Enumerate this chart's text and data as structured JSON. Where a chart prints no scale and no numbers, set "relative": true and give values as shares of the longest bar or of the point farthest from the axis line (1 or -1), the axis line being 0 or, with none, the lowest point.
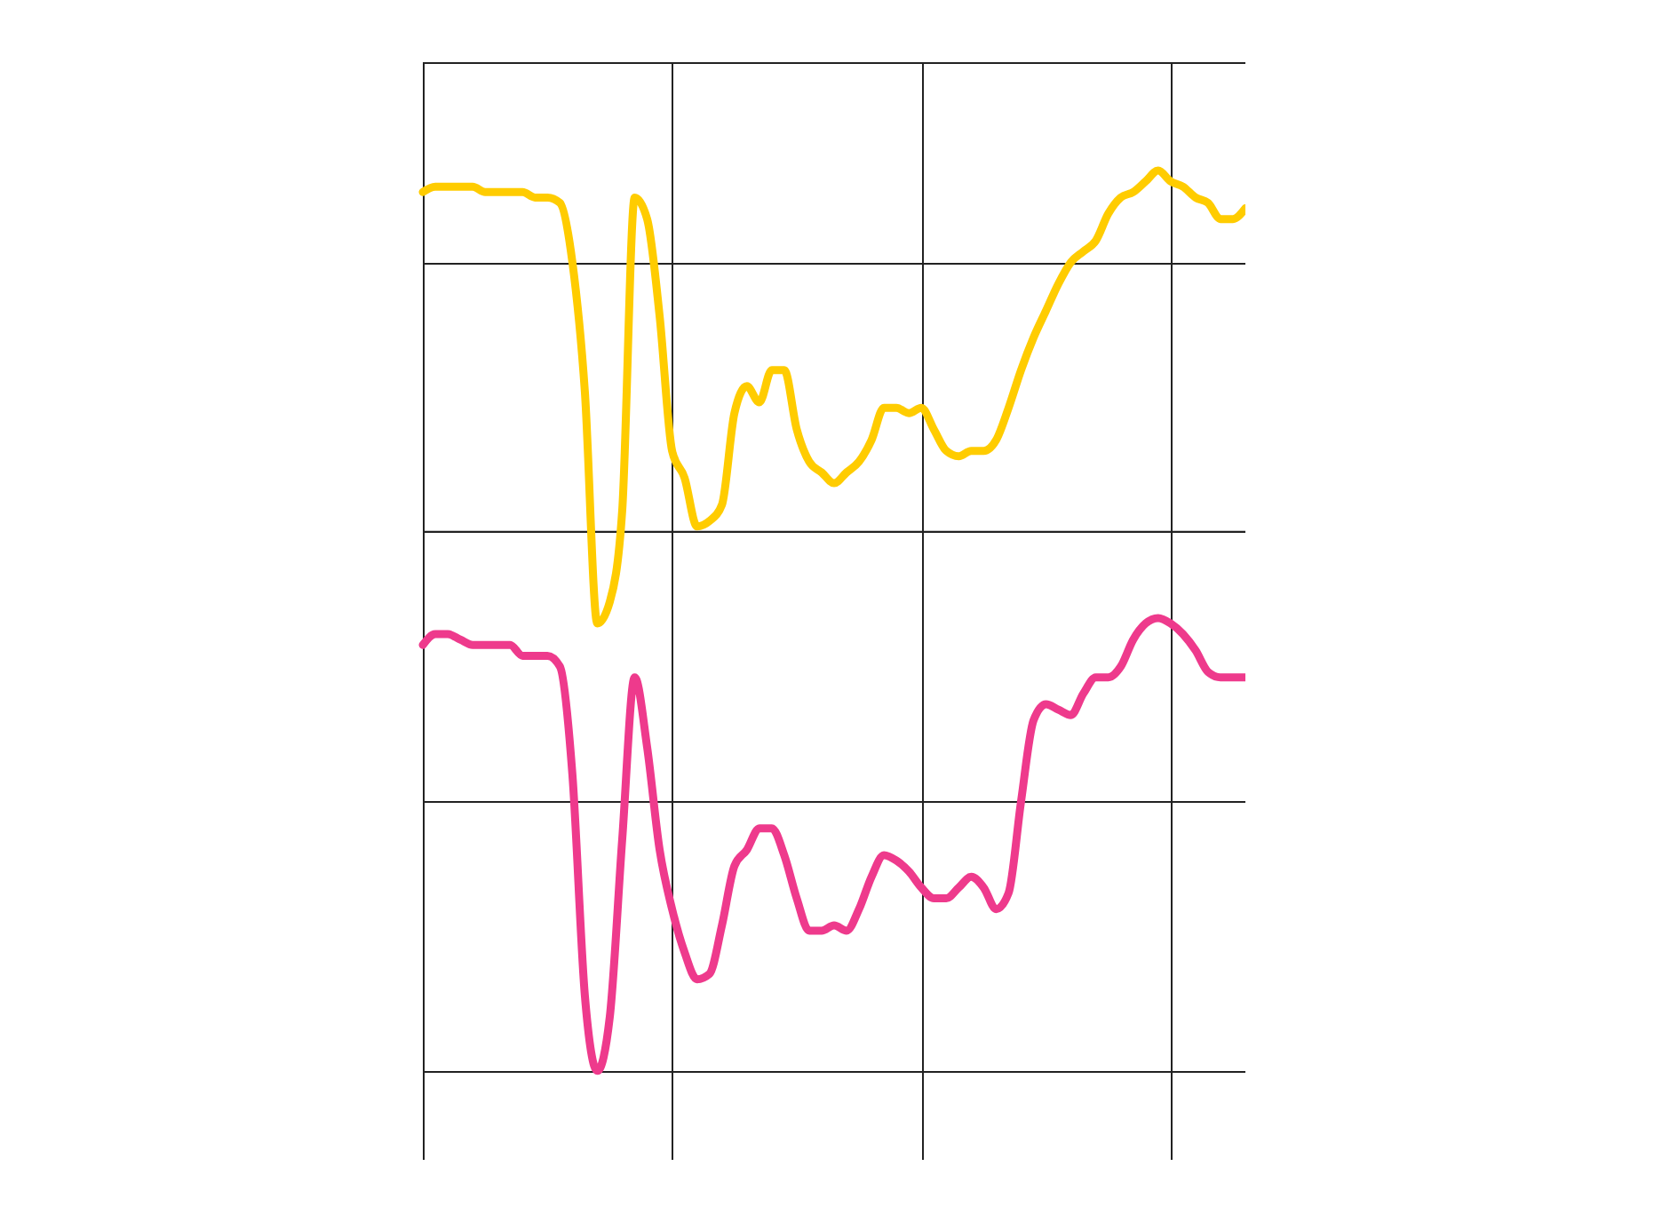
{
  "chart_data": {
    "type": "line",
    "relative": true,
    "grid": true,
    "categories": [
      null,
      null,
      null,
      null,
      null,
      null,
      null,
      null,
      null,
      null,
      null,
      null,
      null,
      null,
      null,
      null,
      null,
      null,
      null,
      null,
      null,
      null,
      null,
      null,
      null,
      null,
      null,
      null,
      null,
      null,
      null,
      null,
      null,
      null,
      null,
      null,
      null,
      null,
      null,
      null,
      null,
      null,
      null,
      null,
      null,
      null,
      null,
      null,
      null,
      null,
      null,
      null,
      null,
      null,
      null,
      null,
      null,
      null,
      null,
      null,
      null,
      null,
      null,
      null,
      null,
      null,
      null
    ],
    "series": [
      {
        "color": "#ffcc00",
        "values": [
          0.63,
          0.64,
          0.64,
          0.64,
          0.64,
          0.63,
          0.63,
          0.63,
          0.63,
          0.62,
          0.62,
          0.61,
          0.5,
          0.26,
          -0.17,
          -0.13,
          0.04,
          0.62,
          0.58,
          0.4,
          0.15,
          0.1,
          0.01,
          0.02,
          0.05,
          0.22,
          0.27,
          0.24,
          0.3,
          0.3,
          0.19,
          0.13,
          0.11,
          0.09,
          0.11,
          0.13,
          0.17,
          0.23,
          0.23,
          0.22,
          0.23,
          0.19,
          0.15,
          0.14,
          0.15,
          0.15,
          0.17,
          0.23,
          0.3,
          0.36,
          0.41,
          0.46,
          0.5,
          0.52,
          0.54,
          0.59,
          0.62,
          0.63,
          0.65,
          0.67,
          0.65,
          0.64,
          0.62,
          0.61,
          0.58,
          0.58,
          0.6
        ]
      },
      {
        "color": "#ee3a8c",
        "values": [
          -0.21,
          -0.19,
          -0.19,
          -0.2,
          -0.21,
          -0.21,
          -0.21,
          -0.21,
          -0.23,
          -0.23,
          -0.23,
          -0.25,
          -0.45,
          -0.86,
          -1,
          -0.9,
          -0.57,
          -0.27,
          -0.4,
          -0.59,
          -0.7,
          -0.78,
          -0.83,
          -0.82,
          -0.73,
          -0.62,
          -0.59,
          -0.55,
          -0.55,
          -0.6,
          -0.68,
          -0.74,
          -0.74,
          -0.73,
          -0.74,
          -0.7,
          -0.64,
          -0.6,
          -0.61,
          -0.63,
          -0.66,
          -0.68,
          -0.68,
          -0.66,
          -0.64,
          -0.66,
          -0.7,
          -0.67,
          -0.5,
          -0.35,
          -0.32,
          -0.33,
          -0.34,
          -0.3,
          -0.27,
          -0.27,
          -0.25,
          -0.2,
          -0.17,
          -0.16,
          -0.17,
          -0.19,
          -0.22,
          -0.26,
          -0.27,
          -0.27,
          -0.27
        ]
      }
    ]
  }
}
